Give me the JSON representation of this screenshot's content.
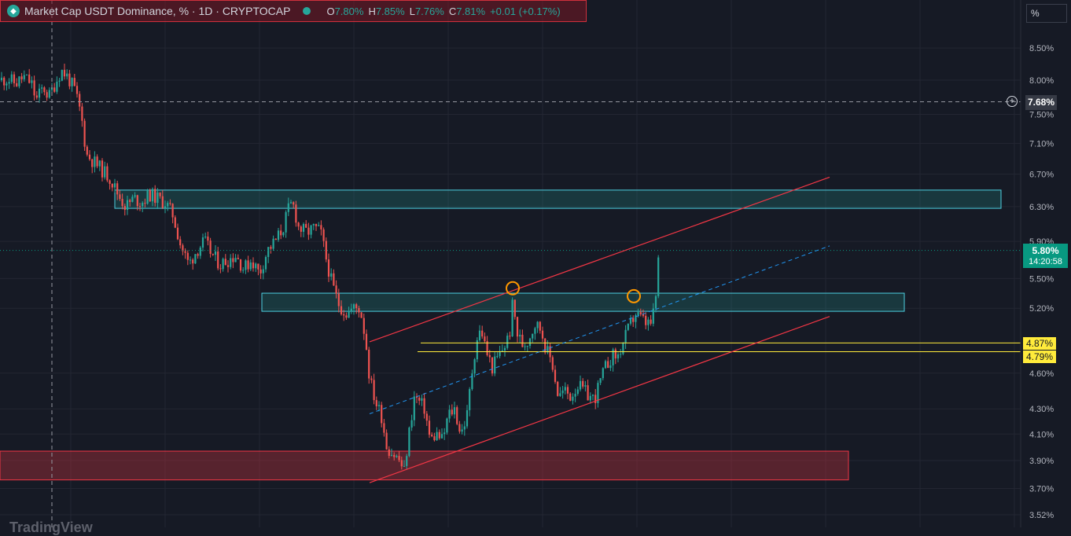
{
  "legend": {
    "title": "Market Cap USDT Dominance, % · 1D · CRYPTOCAP",
    "open_label": "O",
    "open": "7.80%",
    "high_label": "H",
    "high": "7.85%",
    "low_label": "L",
    "low": "7.76%",
    "close_label": "C",
    "close": "7.81%",
    "change": "+0.01 (+0.17%)"
  },
  "unit_selector": "%",
  "crosshair": {
    "price_label": "7.68%",
    "price": 7.68
  },
  "last_price": {
    "value": "5.80%",
    "countdown": "14:20:58",
    "price": 5.8
  },
  "horizontal_lines": [
    {
      "label": "4.87%",
      "price": 4.87
    },
    {
      "label": "4.79%",
      "price": 4.79
    }
  ],
  "watermark": "TradingView",
  "colors": {
    "up": "#26a69a",
    "down": "#ef5350",
    "zone_green": "#26a69a",
    "zone_red": "#b2303c",
    "channel": "#f23645",
    "midline": "#2196f3",
    "hline": "#ffeb3b",
    "marker": "#ff9800"
  },
  "chart_data": {
    "type": "candlestick",
    "title": "Market Cap USDT Dominance, % · 1D · CRYPTOCAP",
    "y_axis": {
      "scale": "log",
      "unit": "%",
      "ticks": [
        "8.50%",
        "8.00%",
        "7.50%",
        "7.10%",
        "6.70%",
        "6.30%",
        "5.90%",
        "5.50%",
        "5.20%",
        "4.60%",
        "4.30%",
        "4.10%",
        "3.90%",
        "3.70%",
        "3.52%"
      ],
      "tick_values": [
        8.5,
        8.0,
        7.5,
        7.1,
        6.7,
        6.3,
        5.9,
        5.5,
        5.2,
        4.6,
        4.3,
        4.1,
        3.9,
        3.7,
        3.52
      ]
    },
    "grid": true,
    "close_path": [
      [
        0,
        8.0
      ],
      [
        10,
        8.02
      ],
      [
        20,
        7.95
      ],
      [
        30,
        8.05
      ],
      [
        40,
        7.95
      ],
      [
        46,
        7.7
      ],
      [
        55,
        7.9
      ],
      [
        62,
        7.75
      ],
      [
        70,
        7.95
      ],
      [
        78,
        8.15
      ],
      [
        86,
        8.05
      ],
      [
        95,
        7.85
      ],
      [
        103,
        7.5
      ],
      [
        110,
        6.95
      ],
      [
        120,
        6.85
      ],
      [
        130,
        6.75
      ],
      [
        140,
        6.65
      ],
      [
        150,
        6.45
      ],
      [
        160,
        6.3
      ],
      [
        170,
        6.4
      ],
      [
        180,
        6.35
      ],
      [
        190,
        6.45
      ],
      [
        200,
        6.4
      ],
      [
        210,
        6.35
      ],
      [
        220,
        6.2
      ],
      [
        230,
        5.85
      ],
      [
        240,
        5.65
      ],
      [
        250,
        5.8
      ],
      [
        260,
        5.9
      ],
      [
        270,
        5.75
      ],
      [
        280,
        5.65
      ],
      [
        290,
        5.7
      ],
      [
        300,
        5.75
      ],
      [
        310,
        5.6
      ],
      [
        320,
        5.7
      ],
      [
        330,
        5.55
      ],
      [
        340,
        5.8
      ],
      [
        350,
        5.9
      ],
      [
        360,
        6.05
      ],
      [
        366,
        6.25
      ],
      [
        372,
        6.35
      ],
      [
        380,
        6.05
      ],
      [
        390,
        6.0
      ],
      [
        400,
        6.05
      ],
      [
        408,
        6.0
      ],
      [
        415,
        5.7
      ],
      [
        422,
        5.45
      ],
      [
        430,
        5.25
      ],
      [
        440,
        5.15
      ],
      [
        450,
        5.2
      ],
      [
        458,
        5.2
      ],
      [
        465,
        4.9
      ],
      [
        470,
        4.55
      ],
      [
        478,
        4.35
      ],
      [
        485,
        4.25
      ],
      [
        492,
        4.0
      ],
      [
        500,
        3.95
      ],
      [
        508,
        3.9
      ],
      [
        514,
        3.82
      ],
      [
        520,
        4.1
      ],
      [
        527,
        4.4
      ],
      [
        534,
        4.35
      ],
      [
        540,
        4.3
      ],
      [
        547,
        4.05
      ],
      [
        555,
        4.1
      ],
      [
        563,
        4.05
      ],
      [
        570,
        4.25
      ],
      [
        578,
        4.3
      ],
      [
        586,
        4.1
      ],
      [
        594,
        4.25
      ],
      [
        600,
        4.6
      ],
      [
        606,
        4.9
      ],
      [
        612,
        5.0
      ],
      [
        618,
        4.8
      ],
      [
        626,
        4.65
      ],
      [
        634,
        4.75
      ],
      [
        642,
        4.85
      ],
      [
        648,
        4.95
      ],
      [
        652,
        5.25
      ],
      [
        658,
        4.95
      ],
      [
        665,
        4.85
      ],
      [
        672,
        4.9
      ],
      [
        680,
        5.05
      ],
      [
        688,
        5.0
      ],
      [
        695,
        4.8
      ],
      [
        702,
        4.7
      ],
      [
        710,
        4.4
      ],
      [
        718,
        4.45
      ],
      [
        726,
        4.4
      ],
      [
        734,
        4.5
      ],
      [
        742,
        4.45
      ],
      [
        750,
        4.4
      ],
      [
        756,
        4.38
      ],
      [
        762,
        4.5
      ],
      [
        770,
        4.65
      ],
      [
        778,
        4.75
      ],
      [
        786,
        4.75
      ],
      [
        794,
        4.9
      ],
      [
        802,
        5.05
      ],
      [
        808,
        5.15
      ],
      [
        815,
        5.1
      ],
      [
        822,
        5.05
      ],
      [
        828,
        5.05
      ],
      [
        833,
        5.2
      ],
      [
        836,
        5.55
      ],
      [
        838,
        5.8
      ]
    ],
    "zones": [
      {
        "type": "resistance",
        "from": 6.28,
        "to": 6.5
      },
      {
        "type": "resistance",
        "from": 5.17,
        "to": 5.35
      },
      {
        "type": "support",
        "from": 3.76,
        "to": 3.97
      }
    ],
    "channel": {
      "upper": [
        [
          470,
          4.88
        ],
        [
          1055,
          6.66
        ]
      ],
      "lower": [
        [
          470,
          3.74
        ],
        [
          1055,
          5.12
        ]
      ],
      "mid": [
        [
          470,
          4.26
        ],
        [
          1055,
          5.85
        ]
      ]
    },
    "markers": [
      {
        "x": 652,
        "price": 5.4
      },
      {
        "x": 806,
        "price": 5.32
      }
    ]
  }
}
